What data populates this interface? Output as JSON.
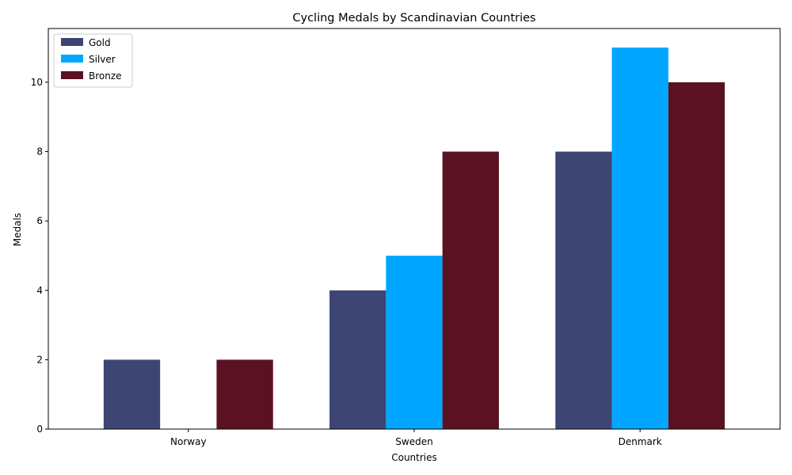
{
  "chart_data": {
    "type": "bar",
    "title": "Cycling Medals by Scandinavian Countries",
    "xlabel": "Countries",
    "ylabel": "Medals",
    "categories": [
      "Norway",
      "Sweden",
      "Denmark"
    ],
    "series": [
      {
        "name": "Gold",
        "values": [
          2,
          4,
          8
        ],
        "color": "#3d4573"
      },
      {
        "name": "Silver",
        "values": [
          0,
          5,
          11
        ],
        "color": "#00a6ff"
      },
      {
        "name": "Bronze",
        "values": [
          2,
          8,
          10
        ],
        "color": "#5a1222"
      }
    ],
    "ylim": [
      0,
      11.55
    ],
    "yticks": [
      0,
      2,
      4,
      6,
      8,
      10
    ],
    "grid": false,
    "legend_position": "top-left"
  }
}
